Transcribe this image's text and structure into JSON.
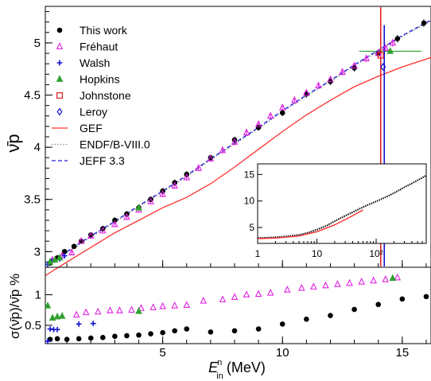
{
  "chart_data": {
    "type": "scatter",
    "xlabel_base": "E",
    "xlabel_sup": "n",
    "xlabel_sub": "in",
    "xlabel_unit": "(MeV)",
    "xlim": [
      0.1,
      16.2
    ],
    "x_ticks": [
      "5",
      "10",
      "15"
    ],
    "panels": [
      {
        "id": "main",
        "ylabel": "ν̄p",
        "ylim": [
          2.85,
          5.35
        ],
        "y_ticks": [
          "3",
          "3.5",
          "4",
          "4.5",
          "5"
        ],
        "legend_position": "top-left",
        "series": [
          {
            "name": "This work",
            "color": "#000000",
            "marker": "circle",
            "x": [
              0.3,
              0.6,
              0.9,
              1.3,
              1.6,
              2.0,
              2.5,
              3.0,
              3.5,
              4.0,
              4.5,
              5.0,
              5.5,
              6.0,
              7.0,
              8.0,
              9.0,
              10.0,
              11.0,
              12.0,
              13.0,
              14.0,
              14.8,
              15.9
            ],
            "y": [
              2.89,
              2.94,
              3.0,
              3.05,
              3.1,
              3.16,
              3.22,
              3.3,
              3.36,
              3.42,
              3.5,
              3.58,
              3.66,
              3.74,
              3.9,
              4.07,
              4.19,
              4.33,
              4.51,
              4.63,
              4.76,
              4.9,
              5.04,
              5.19
            ]
          },
          {
            "name": "Fréhaut",
            "color": "#e020e0",
            "marker": "triangle-open",
            "x": [
              0.4,
              0.8,
              1.2,
              1.6,
              2.0,
              2.5,
              3.0,
              3.5,
              4.0,
              4.5,
              5.0,
              5.5,
              6.0,
              6.5,
              7.0,
              7.5,
              8.0,
              8.5,
              9.0,
              9.5,
              10.0,
              10.5,
              11.0,
              11.5,
              12.0,
              12.5,
              13.0,
              13.5,
              14.0,
              14.3,
              14.6
            ],
            "y": [
              2.92,
              2.96,
              2.99,
              3.1,
              3.15,
              3.2,
              3.26,
              3.33,
              3.4,
              3.48,
              3.55,
              3.63,
              3.71,
              3.8,
              3.89,
              3.97,
              4.05,
              4.14,
              4.22,
              4.3,
              4.38,
              4.45,
              4.52,
              4.59,
              4.65,
              4.72,
              4.78,
              4.85,
              4.9,
              4.95,
              5.0
            ]
          },
          {
            "name": "Walsh",
            "color": "#1010d0",
            "marker": "plus",
            "x": [
              0.2,
              0.35,
              0.5,
              0.7,
              0.9
            ],
            "y": [
              2.88,
              2.91,
              2.92,
              2.93,
              2.96
            ]
          },
          {
            "name": "Hopkins",
            "color": "#30a030",
            "marker": "triangle",
            "x": [
              0.3,
              0.5,
              0.7,
              4.0,
              14.5
            ],
            "y": [
              2.9,
              2.92,
              2.94,
              3.42,
              4.92
            ]
          },
          {
            "name": "Johnstone",
            "color": "#e02020",
            "marker": "square-open",
            "x": [
              14.1
            ],
            "y": [
              4.88
            ]
          },
          {
            "name": "Leroy",
            "color": "#1010d0",
            "marker": "diamond-open",
            "x": [
              14.2
            ],
            "y": [
              4.77
            ]
          },
          {
            "name": "GEF",
            "color": "#ff3030",
            "marker": "line",
            "x": [
              0.1,
              1,
              2,
              3,
              4,
              5,
              6,
              7,
              8,
              9,
              10,
              11,
              12,
              13,
              14,
              15,
              16.2
            ],
            "y": [
              2.77,
              2.9,
              3.04,
              3.18,
              3.3,
              3.42,
              3.52,
              3.65,
              3.81,
              3.98,
              4.15,
              4.31,
              4.45,
              4.58,
              4.68,
              4.77,
              4.86
            ]
          },
          {
            "name": "ENDF/B-VIII.0",
            "color": "#707070",
            "marker": "dotted",
            "x": [
              0.1,
              1,
              2,
              3,
              4,
              5,
              6,
              7,
              8,
              9,
              10,
              11,
              12,
              13,
              14,
              15,
              16.2
            ],
            "y": [
              2.86,
              2.99,
              3.14,
              3.28,
              3.43,
              3.57,
              3.72,
              3.88,
              4.03,
              4.18,
              4.34,
              4.49,
              4.63,
              4.78,
              4.92,
              5.06,
              5.21
            ]
          },
          {
            "name": "JEFF 3.3",
            "color": "#2020e0",
            "marker": "dashed",
            "x": [
              0.1,
              1,
              2,
              3,
              4,
              5,
              6,
              7,
              8,
              9,
              10,
              11,
              12,
              13,
              14,
              15,
              16.2
            ],
            "y": [
              2.87,
              3.0,
              3.15,
              3.29,
              3.44,
              3.58,
              3.73,
              3.89,
              4.04,
              4.19,
              4.35,
              4.5,
              4.64,
              4.79,
              4.93,
              5.07,
              5.22
            ]
          }
        ]
      },
      {
        "id": "ratio",
        "ylabel": "σ(ν̄p)/ν̄p %",
        "ylim": [
          0.2,
          1.45
        ],
        "y_ticks": [
          "0.5",
          "1"
        ],
        "series": [
          {
            "name": "This work",
            "color": "#000000",
            "marker": "circle",
            "x": [
              0.3,
              0.6,
              1.0,
              1.5,
              2.0,
              2.5,
              3.0,
              3.5,
              4.0,
              4.5,
              5.0,
              5.5,
              6.0,
              7.0,
              8.0,
              9.0,
              10.0,
              11.0,
              12.0,
              13.0,
              14.0,
              15.0,
              16.0
            ],
            "y": [
              0.27,
              0.28,
              0.27,
              0.28,
              0.29,
              0.3,
              0.32,
              0.33,
              0.34,
              0.36,
              0.38,
              0.41,
              0.44,
              0.39,
              0.41,
              0.44,
              0.52,
              0.6,
              0.66,
              0.76,
              0.84,
              0.93,
              0.97
            ]
          },
          {
            "name": "Fréhaut",
            "color": "#e020e0",
            "marker": "triangle-open",
            "x": [
              1.4,
              1.8,
              2.3,
              2.8,
              3.2,
              3.7,
              4.1,
              4.6,
              5.0,
              5.5,
              6.0,
              6.7,
              7.5,
              8.0,
              8.5,
              9.0,
              9.5,
              10.2,
              10.8,
              11.3,
              11.8,
              12.3,
              12.8,
              13.3,
              13.8,
              14.3,
              14.8
            ],
            "y": [
              0.67,
              0.71,
              0.72,
              0.74,
              0.74,
              0.75,
              0.78,
              0.79,
              0.81,
              0.82,
              0.83,
              0.9,
              0.92,
              0.96,
              1.0,
              1.01,
              1.03,
              1.08,
              1.11,
              1.13,
              1.15,
              1.17,
              1.19,
              1.21,
              1.23,
              1.25,
              1.28
            ]
          },
          {
            "name": "Walsh",
            "color": "#1010d0",
            "marker": "plus",
            "x": [
              0.2,
              0.3,
              0.45,
              0.6,
              1.5,
              2.1
            ],
            "y": [
              0.24,
              0.44,
              0.43,
              0.43,
              0.52,
              0.53
            ]
          },
          {
            "name": "Hopkins",
            "color": "#30a030",
            "marker": "triangle",
            "x": [
              0.2,
              0.4,
              0.6,
              0.8,
              4.0,
              14.6
            ],
            "y": [
              0.82,
              0.62,
              0.64,
              0.65,
              0.73,
              1.27
            ]
          }
        ]
      }
    ],
    "inset": {
      "type": "line",
      "xscale": "log",
      "xlim": [
        1,
        700
      ],
      "ylim": [
        2,
        17
      ],
      "x_ticks": [
        "1",
        "10",
        "10²"
      ],
      "y_ticks": [
        "5",
        "10",
        "15"
      ],
      "series": [
        {
          "name": "ENDF/B-VIII.0",
          "color": "#000000",
          "x": [
            1,
            1.5,
            2,
            3,
            5,
            7,
            10,
            15,
            20,
            30,
            50,
            70,
            100,
            150,
            200,
            300,
            400,
            500,
            700
          ],
          "y": [
            3.0,
            3.1,
            3.15,
            3.3,
            3.6,
            4.0,
            4.6,
            5.4,
            6.2,
            7.2,
            8.4,
            9.2,
            9.9,
            10.8,
            11.5,
            12.6,
            13.3,
            13.9,
            14.8
          ]
        },
        {
          "name": "GEF",
          "color": "#ff3030",
          "x": [
            1,
            2,
            5,
            10,
            20,
            40,
            60
          ],
          "y": [
            2.9,
            3.0,
            3.4,
            4.2,
            5.5,
            7.2,
            8.3
          ]
        }
      ]
    }
  }
}
